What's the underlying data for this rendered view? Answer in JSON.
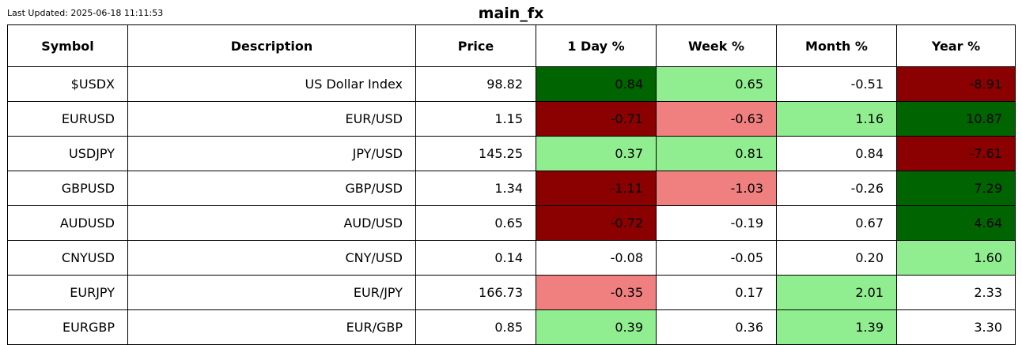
{
  "last_updated": "Last Updated: 2025-06-18 11:11:53",
  "title": "main_fx",
  "colors": {
    "strong_positive": "#006400",
    "mild_positive": "#90ee90",
    "neutral": "#ffffff",
    "mild_negative": "#f08080",
    "strong_negative": "#8b0000"
  },
  "chart_data": {
    "type": "table",
    "title": "main_fx",
    "columns": [
      "Symbol",
      "Description",
      "Price",
      "1 Day %",
      "Week %",
      "Month %",
      "Year %"
    ],
    "rows": [
      {
        "cells": [
          "$USDX",
          "US Dollar Index",
          "98.82",
          "0.84",
          "0.65",
          "-0.51",
          "-8.91"
        ],
        "fills": [
          "#ffffff",
          "#ffffff",
          "#ffffff",
          "#006400",
          "#90ee90",
          "#ffffff",
          "#8b0000"
        ]
      },
      {
        "cells": [
          "EURUSD",
          "EUR/USD",
          "1.15",
          "-0.71",
          "-0.63",
          "1.16",
          "10.87"
        ],
        "fills": [
          "#ffffff",
          "#ffffff",
          "#ffffff",
          "#8b0000",
          "#f08080",
          "#90ee90",
          "#006400"
        ]
      },
      {
        "cells": [
          "USDJPY",
          "JPY/USD",
          "145.25",
          "0.37",
          "0.81",
          "0.84",
          "-7.61"
        ],
        "fills": [
          "#ffffff",
          "#ffffff",
          "#ffffff",
          "#90ee90",
          "#90ee90",
          "#ffffff",
          "#8b0000"
        ]
      },
      {
        "cells": [
          "GBPUSD",
          "GBP/USD",
          "1.34",
          "-1.11",
          "-1.03",
          "-0.26",
          "7.29"
        ],
        "fills": [
          "#ffffff",
          "#ffffff",
          "#ffffff",
          "#8b0000",
          "#f08080",
          "#ffffff",
          "#006400"
        ]
      },
      {
        "cells": [
          "AUDUSD",
          "AUD/USD",
          "0.65",
          "-0.72",
          "-0.19",
          "0.67",
          "4.64"
        ],
        "fills": [
          "#ffffff",
          "#ffffff",
          "#ffffff",
          "#8b0000",
          "#ffffff",
          "#ffffff",
          "#006400"
        ]
      },
      {
        "cells": [
          "CNYUSD",
          "CNY/USD",
          "0.14",
          "-0.08",
          "-0.05",
          "0.20",
          "1.60"
        ],
        "fills": [
          "#ffffff",
          "#ffffff",
          "#ffffff",
          "#ffffff",
          "#ffffff",
          "#ffffff",
          "#90ee90"
        ]
      },
      {
        "cells": [
          "EURJPY",
          "EUR/JPY",
          "166.73",
          "-0.35",
          "0.17",
          "2.01",
          "2.33"
        ],
        "fills": [
          "#ffffff",
          "#ffffff",
          "#ffffff",
          "#f08080",
          "#ffffff",
          "#90ee90",
          "#ffffff"
        ]
      },
      {
        "cells": [
          "EURGBP",
          "EUR/GBP",
          "0.85",
          "0.39",
          "0.36",
          "1.39",
          "3.30"
        ],
        "fills": [
          "#ffffff",
          "#ffffff",
          "#ffffff",
          "#90ee90",
          "#ffffff",
          "#90ee90",
          "#ffffff"
        ]
      }
    ]
  }
}
